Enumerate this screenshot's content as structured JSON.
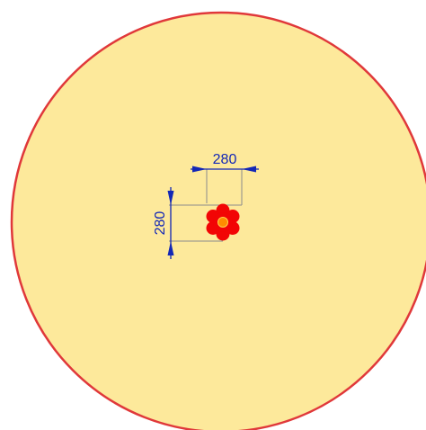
{
  "colors": {
    "background": "#ffffff",
    "zone_fill": "#fde99b",
    "zone_stroke": "#e0383a",
    "dimension": "#1327b6",
    "extension_line": "#8c8c8c",
    "item_fill": "#f20505",
    "item_center": "#ff8c00",
    "item_center_ring": "#ffd34d"
  },
  "dimensions": {
    "width_label": "280",
    "height_label": "280"
  },
  "icons": {
    "item": "flower-icon"
  }
}
